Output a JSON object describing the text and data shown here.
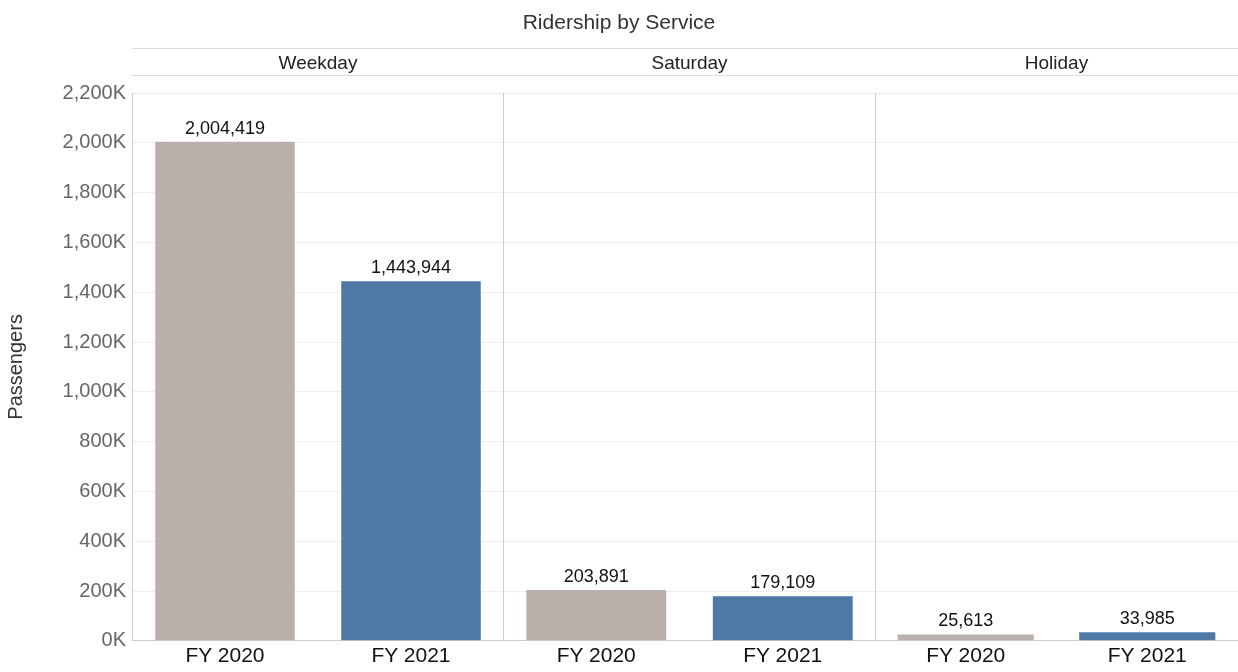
{
  "chart_data": [
    {
      "type": "bar",
      "subtitle": "Weekday",
      "ylabel": "Passengers",
      "categories": [
        "FY 2020",
        "FY 2021"
      ],
      "values": [
        2004419,
        1443944
      ],
      "value_labels": [
        "2,004,419",
        "1,443,944"
      ],
      "colors": [
        "#bab0ab",
        "#4e79a7"
      ],
      "ylim": [
        0,
        2200000
      ],
      "yticks": [
        {
          "value": 0,
          "label": "0K"
        },
        {
          "value": 200000,
          "label": "200K"
        },
        {
          "value": 400000,
          "label": "400K"
        },
        {
          "value": 600000,
          "label": "600K"
        },
        {
          "value": 800000,
          "label": "800K"
        },
        {
          "value": 1000000,
          "label": "1,000K"
        },
        {
          "value": 1200000,
          "label": "1,200K"
        },
        {
          "value": 1400000,
          "label": "1,400K"
        },
        {
          "value": 1600000,
          "label": "1,600K"
        },
        {
          "value": 1800000,
          "label": "1,800K"
        },
        {
          "value": 2000000,
          "label": "2,000K"
        },
        {
          "value": 2200000,
          "label": "2,200K"
        }
      ],
      "grid": "y"
    },
    {
      "type": "bar",
      "title": "Ridership by Service",
      "subtitle": "Saturday",
      "categories": [
        "FY 2020",
        "FY 2021"
      ],
      "values": [
        203891,
        179109
      ],
      "value_labels": [
        "203,891",
        "179,109"
      ],
      "colors": [
        "#bab0ab",
        "#4e79a7"
      ],
      "ylim": [
        0,
        2200000
      ],
      "yticks": [
        0,
        200000,
        400000,
        600000,
        800000,
        1000000,
        1200000,
        1400000,
        1600000,
        1800000,
        2000000,
        2200000
      ],
      "grid": "y",
      "tick_labels": "x"
    },
    {
      "type": "bar",
      "subtitle": "Holiday",
      "categories": [
        "FY 2020",
        "FY 2021"
      ],
      "values": [
        25613,
        33985
      ],
      "value_labels": [
        "25,613",
        "33,985"
      ],
      "colors": [
        "#bab0ab",
        "#4e79a7"
      ],
      "ylim": [
        0,
        2200000
      ],
      "yticks": [
        0,
        200000,
        400000,
        600000,
        800000,
        1000000,
        1200000,
        1400000,
        1600000,
        1800000,
        2000000,
        2200000
      ],
      "grid": "y",
      "tick_labels": "x"
    }
  ]
}
